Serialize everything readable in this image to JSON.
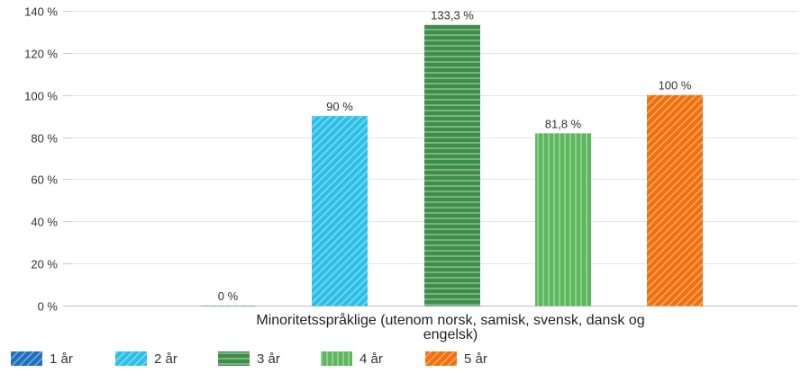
{
  "chart_data": {
    "type": "bar",
    "categories": [
      "Minoritetsspråklige (utenom norsk, samisk, svensk, dansk og engelsk)"
    ],
    "category_label_lines": [
      "Minoritetsspråklige (utenom norsk, samisk, svensk, dansk og",
      "engelsk)"
    ],
    "series": [
      {
        "name": "1 år",
        "values": [
          0
        ],
        "data_labels": [
          "0 %"
        ],
        "color": "#1f6fbf",
        "pattern": "diagonal"
      },
      {
        "name": "2 år",
        "values": [
          90
        ],
        "data_labels": [
          "90 %"
        ],
        "color": "#2bbfe8",
        "pattern": "diagonal"
      },
      {
        "name": "3 år",
        "values": [
          133.3
        ],
        "data_labels": [
          "133,3 %"
        ],
        "color": "#3d8f48",
        "pattern": "horizontal"
      },
      {
        "name": "4 år",
        "values": [
          81.8
        ],
        "data_labels": [
          "81,8 %"
        ],
        "color": "#5cb85c",
        "pattern": "vertical"
      },
      {
        "name": "5 år",
        "values": [
          100
        ],
        "data_labels": [
          "100 %"
        ],
        "color": "#f2700d",
        "pattern": "diagonal"
      }
    ],
    "y_ticks": [
      {
        "value": 0,
        "label": "0 %"
      },
      {
        "value": 20,
        "label": "20 %"
      },
      {
        "value": 40,
        "label": "40 %"
      },
      {
        "value": 60,
        "label": "60 %"
      },
      {
        "value": 80,
        "label": "80 %"
      },
      {
        "value": 100,
        "label": "100 %"
      },
      {
        "value": 120,
        "label": "120 %"
      },
      {
        "value": 140,
        "label": "140 %"
      }
    ],
    "ylim": [
      0,
      140
    ],
    "grid": true,
    "legend_position": "bottom-left",
    "title": "",
    "xlabel": "",
    "ylabel": ""
  }
}
